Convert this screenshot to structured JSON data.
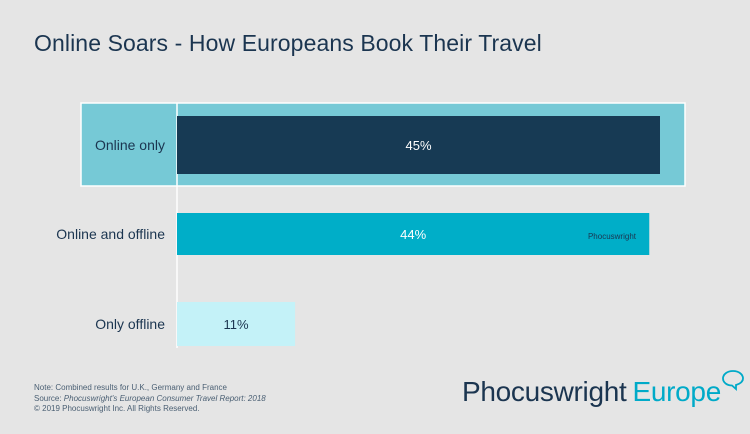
{
  "title": "Online Soars - How Europeans Book Their Travel",
  "chart_data": {
    "type": "bar",
    "orientation": "horizontal",
    "categories": [
      "Online only",
      "Online and offline",
      "Only offline"
    ],
    "values": [
      45,
      44,
      11
    ],
    "value_labels": [
      "45%",
      "44%",
      "11%"
    ],
    "unit": "%",
    "bar_colors": [
      "#173a54",
      "#00aec8",
      "#c4f2f8"
    ],
    "label_colors": [
      "#ffffff",
      "#ffffff",
      "#1b3550"
    ],
    "highlight_color": "#76c9d6",
    "highlighted_category": "Online only",
    "xlim": [
      0,
      45
    ],
    "grid": false,
    "legend": "none"
  },
  "watermark": "Phocuswright",
  "notes": {
    "line1": "Note: Combined results for U.K., Germany and France",
    "line2_prefix": "Source: ",
    "line2_source": "Phocuswright's European Consumer Travel Report: 2018",
    "line3": "© 2019  Phocuswright Inc. All Rights Reserved."
  },
  "logo": {
    "brand": "Phocuswright",
    "region": "Europe"
  },
  "colors": {
    "navy": "#1b3550",
    "teal": "#00aac8",
    "background": "#e5e5e5"
  }
}
